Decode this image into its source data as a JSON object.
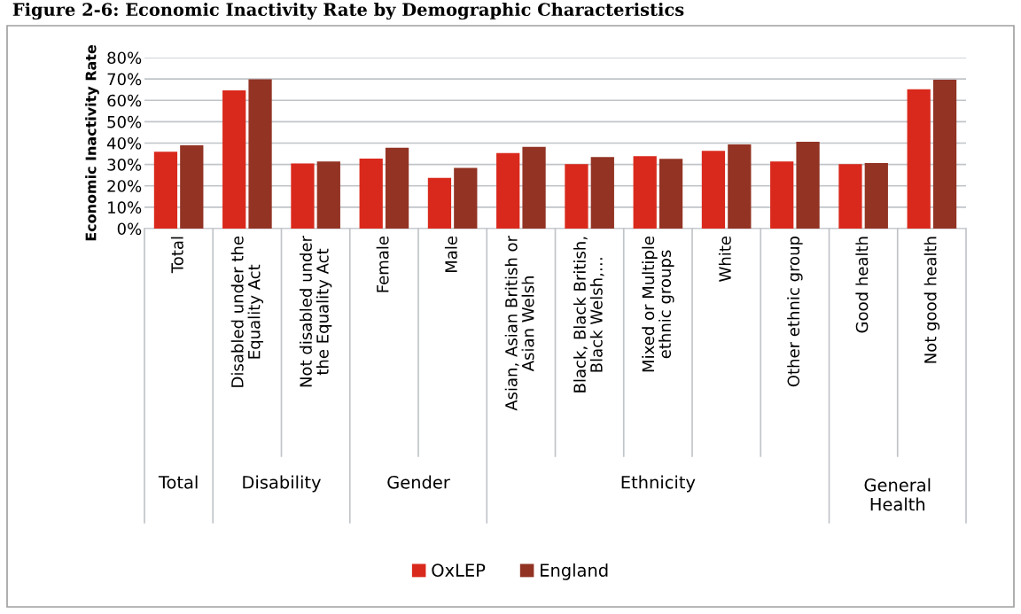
{
  "chart_data": {
    "type": "bar",
    "title": "Figure 2-6: Economic Inactivity Rate by Demographic Characteristics",
    "ylabel": "Economic Inactivity Rate",
    "categories": [
      "Total",
      "Disabled under the\nEquality Act",
      "Not disabled under\nthe Equality Act",
      "Female",
      "Male",
      "Asian, Asian British or\nAsian Welsh",
      "Black, Black British,\nBlack Welsh,…",
      "Mixed or Multiple\nethnic groups",
      "White",
      "Other ethnic group",
      "Good health",
      "Not good health"
    ],
    "series": [
      {
        "name": "OxLEP",
        "color": "#d9291c",
        "values": [
          36.0,
          64.7,
          30.5,
          32.7,
          23.7,
          35.3,
          30.2,
          33.9,
          36.4,
          31.4,
          30.2,
          65.2
        ]
      },
      {
        "name": "England",
        "color": "#923324",
        "values": [
          39.0,
          69.8,
          31.4,
          37.8,
          28.4,
          38.2,
          33.5,
          32.6,
          39.4,
          40.6,
          30.7,
          69.6
        ]
      }
    ],
    "annotations": [
      "Total",
      "Disability",
      "Gender",
      "Ethnicity",
      "General Health"
    ],
    "ylim": [
      0,
      80
    ],
    "yticks": [
      {
        "value": 0,
        "label": "0%"
      },
      {
        "value": 10,
        "label": "10%"
      },
      {
        "value": 20,
        "label": "20%"
      },
      {
        "value": 30,
        "label": "30%"
      },
      {
        "value": 40,
        "label": "40%"
      },
      {
        "value": 50,
        "label": "50%"
      },
      {
        "value": 60,
        "label": "60%"
      },
      {
        "value": 70,
        "label": "70%"
      },
      {
        "value": 80,
        "label": "80%"
      }
    ],
    "grid": "y",
    "legend": "bottom"
  }
}
